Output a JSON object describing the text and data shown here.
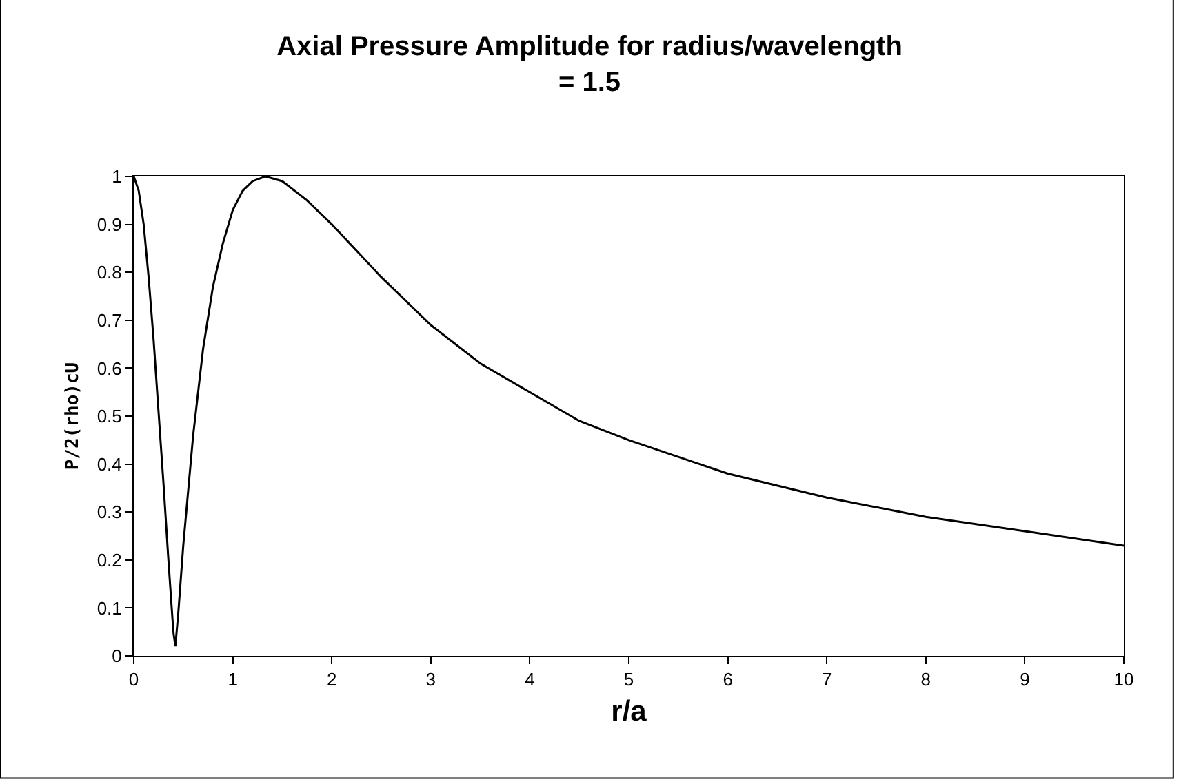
{
  "chart_data": {
    "type": "line",
    "title": "Axial Pressure Amplitude for radius/wavelength = 1.5",
    "xlabel": "r/a",
    "ylabel": "P/2(rho)cU",
    "x": [
      0,
      0.05,
      0.1,
      0.15,
      0.2,
      0.25,
      0.3,
      0.35,
      0.4,
      0.42,
      0.45,
      0.5,
      0.6,
      0.7,
      0.8,
      0.9,
      1.0,
      1.1,
      1.2,
      1.33,
      1.5,
      1.75,
      2,
      2.5,
      3,
      3.5,
      4,
      4.5,
      5,
      6,
      7,
      8,
      9,
      10
    ],
    "series": [
      {
        "color": "#000000",
        "values": [
          1,
          0.97,
          0.9,
          0.79,
          0.66,
          0.51,
          0.36,
          0.2,
          0.05,
          0.02,
          0.09,
          0.23,
          0.46,
          0.64,
          0.77,
          0.86,
          0.93,
          0.97,
          0.99,
          1,
          0.99,
          0.95,
          0.9,
          0.79,
          0.69,
          0.61,
          0.55,
          0.49,
          0.45,
          0.38,
          0.33,
          0.29,
          0.26,
          0.23
        ]
      }
    ],
    "xlim": [
      0,
      10
    ],
    "xticks": [
      0,
      1,
      2,
      3,
      4,
      5,
      6,
      7,
      8,
      9,
      10
    ],
    "ylim": [
      0,
      1
    ],
    "yticks": [
      0,
      0.1,
      0.2,
      0.3,
      0.4,
      0.5,
      0.6,
      0.7,
      0.8,
      0.9,
      1
    ],
    "grid": false,
    "marker": "none",
    "line_style": "solid"
  }
}
